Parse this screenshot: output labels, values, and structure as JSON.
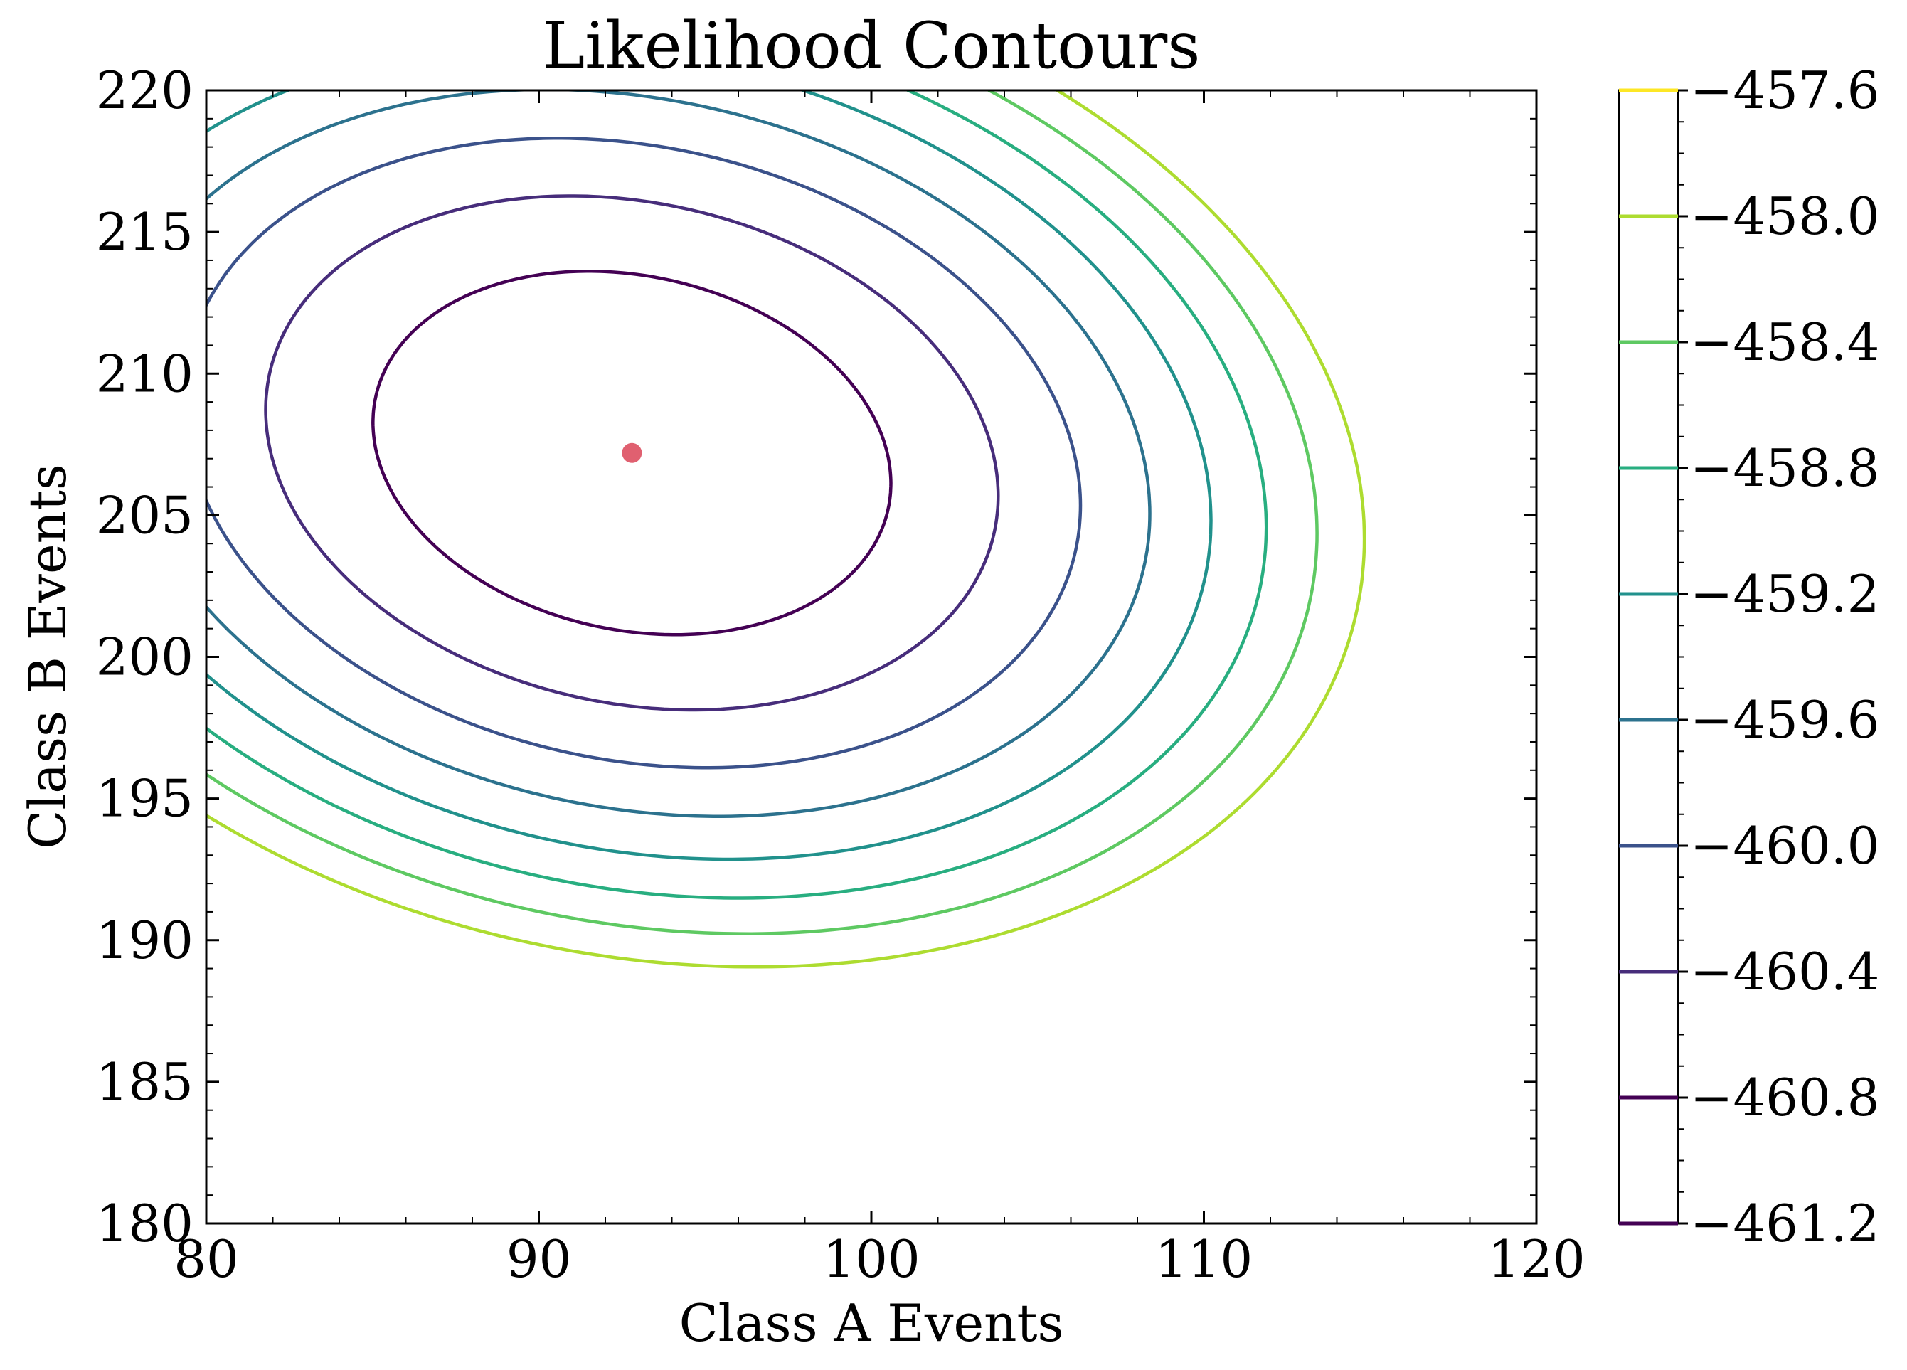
{
  "chart_data": {
    "type": "contour",
    "title": "Likelihood Contours",
    "xlabel": "Class A Events",
    "ylabel": "Class B Events",
    "xlim": [
      80,
      120
    ],
    "ylim": [
      180,
      220
    ],
    "xticks": [
      80,
      90,
      100,
      110,
      120
    ],
    "xtick_labels": [
      "80",
      "90",
      "100",
      "110",
      "120"
    ],
    "yticks": [
      180,
      185,
      190,
      195,
      200,
      205,
      210,
      215,
      220
    ],
    "ytick_labels": [
      "180",
      "185",
      "190",
      "195",
      "200",
      "205",
      "210",
      "215",
      "220"
    ],
    "grid": false,
    "max_likelihood_point": {
      "x": 92.8,
      "y": 207.2,
      "color": "#e06070"
    },
    "function": {
      "form": "quadratic",
      "peak": -461.2,
      "center": [
        92.8,
        207.2
      ],
      "a": 0.006786,
      "b": 0.002756,
      "c": 0.01
    },
    "levels": [
      -461.2,
      -460.8,
      -460.4,
      -460.0,
      -459.6,
      -459.2,
      -458.8,
      -458.4,
      -458.0,
      -457.6
    ],
    "level_colors": [
      "#440154",
      "#472d7b",
      "#3b528b",
      "#2c728e",
      "#21918c",
      "#28ae80",
      "#5ec962",
      "#addc30",
      "#fde725"
    ],
    "colorbar": {
      "tick_labels": [
        "−461.2",
        "−460.8",
        "−460.4",
        "−460.0",
        "−459.6",
        "−459.2",
        "−458.8",
        "−458.4",
        "−458.0",
        "−457.6"
      ]
    }
  }
}
